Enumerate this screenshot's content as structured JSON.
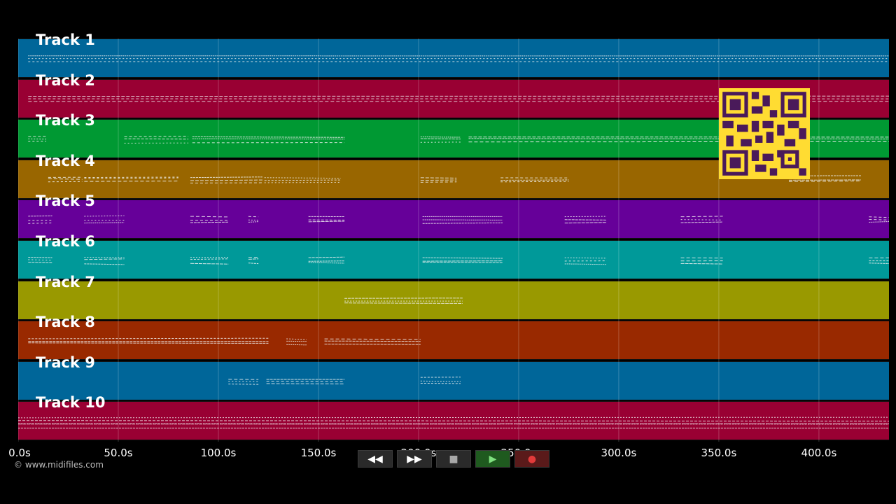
{
  "tracks": [
    {
      "label": "Track 1",
      "color": "#006699"
    },
    {
      "label": "Track 2",
      "color": "#990033"
    },
    {
      "label": "Track 3",
      "color": "#009933"
    },
    {
      "label": "Track 4",
      "color": "#996600"
    },
    {
      "label": "Track 5",
      "color": "#660099"
    },
    {
      "label": "Track 6",
      "color": "#009999"
    },
    {
      "label": "Track 7",
      "color": "#999900"
    },
    {
      "label": "Track 8",
      "color": "#992900"
    },
    {
      "label": "Track 9",
      "color": "#006699"
    },
    {
      "label": "Track 10",
      "color": "#990033"
    }
  ],
  "timeline": {
    "seconds_visible": 435,
    "ticks": [
      {
        "seconds": 0,
        "label": "0.0s"
      },
      {
        "seconds": 50,
        "label": "50.0s"
      },
      {
        "seconds": 100,
        "label": "100.0s"
      },
      {
        "seconds": 150,
        "label": "150.0s"
      },
      {
        "seconds": 200,
        "label": "200.0s"
      },
      {
        "seconds": 250,
        "label": "250.0s"
      },
      {
        "seconds": 300,
        "label": "300.0s"
      },
      {
        "seconds": 350,
        "label": "350.0s"
      },
      {
        "seconds": 400,
        "label": "400.0s"
      }
    ]
  },
  "footer": {
    "copyright": "© www.midifiles.com"
  },
  "transport": [
    {
      "name": "rewind-button",
      "icon": "rewind-icon",
      "glyph": "◀◀",
      "kind": "normal"
    },
    {
      "name": "fast-forward-button",
      "icon": "fast-forward-icon",
      "glyph": "▶▶",
      "kind": "normal"
    },
    {
      "name": "stop-button",
      "icon": "stop-icon",
      "glyph": "■",
      "kind": "normal"
    },
    {
      "name": "play-button",
      "icon": "play-icon",
      "glyph": "▶",
      "kind": "play"
    },
    {
      "name": "record-button",
      "icon": "record-icon",
      "glyph": "●",
      "kind": "rec"
    }
  ],
  "note_segments": [
    {
      "track": 0,
      "from": 5,
      "to": 435
    },
    {
      "track": 1,
      "from": 5,
      "to": 435
    },
    {
      "track": 2,
      "from": 5,
      "to": 14
    },
    {
      "track": 2,
      "from": 53,
      "to": 85
    },
    {
      "track": 2,
      "from": 87,
      "to": 163
    },
    {
      "track": 2,
      "from": 201,
      "to": 221
    },
    {
      "track": 2,
      "from": 225,
      "to": 435
    },
    {
      "track": 3,
      "from": 15,
      "to": 32
    },
    {
      "track": 3,
      "from": 33,
      "to": 80
    },
    {
      "track": 3,
      "from": 86,
      "to": 122
    },
    {
      "track": 3,
      "from": 123,
      "to": 161
    },
    {
      "track": 3,
      "from": 201,
      "to": 219
    },
    {
      "track": 3,
      "from": 241,
      "to": 275
    },
    {
      "track": 3,
      "from": 385,
      "to": 421
    },
    {
      "track": 4,
      "from": 5,
      "to": 17
    },
    {
      "track": 4,
      "from": 33,
      "to": 53
    },
    {
      "track": 4,
      "from": 86,
      "to": 105
    },
    {
      "track": 4,
      "from": 115,
      "to": 120
    },
    {
      "track": 4,
      "from": 145,
      "to": 163
    },
    {
      "track": 4,
      "from": 202,
      "to": 242
    },
    {
      "track": 4,
      "from": 273,
      "to": 294
    },
    {
      "track": 4,
      "from": 331,
      "to": 352
    },
    {
      "track": 4,
      "from": 425,
      "to": 435
    },
    {
      "track": 5,
      "from": 5,
      "to": 17
    },
    {
      "track": 5,
      "from": 33,
      "to": 53
    },
    {
      "track": 5,
      "from": 86,
      "to": 105
    },
    {
      "track": 5,
      "from": 115,
      "to": 120
    },
    {
      "track": 5,
      "from": 145,
      "to": 163
    },
    {
      "track": 5,
      "from": 202,
      "to": 242
    },
    {
      "track": 5,
      "from": 273,
      "to": 294
    },
    {
      "track": 5,
      "from": 331,
      "to": 352
    },
    {
      "track": 5,
      "from": 425,
      "to": 435
    },
    {
      "track": 6,
      "from": 163,
      "to": 222
    },
    {
      "track": 7,
      "from": 5,
      "to": 125
    },
    {
      "track": 7,
      "from": 134,
      "to": 144
    },
    {
      "track": 7,
      "from": 153,
      "to": 201
    },
    {
      "track": 8,
      "from": 105,
      "to": 120
    },
    {
      "track": 8,
      "from": 124,
      "to": 163
    },
    {
      "track": 8,
      "from": 201,
      "to": 221
    },
    {
      "track": 9,
      "from": 0,
      "to": 435
    }
  ]
}
